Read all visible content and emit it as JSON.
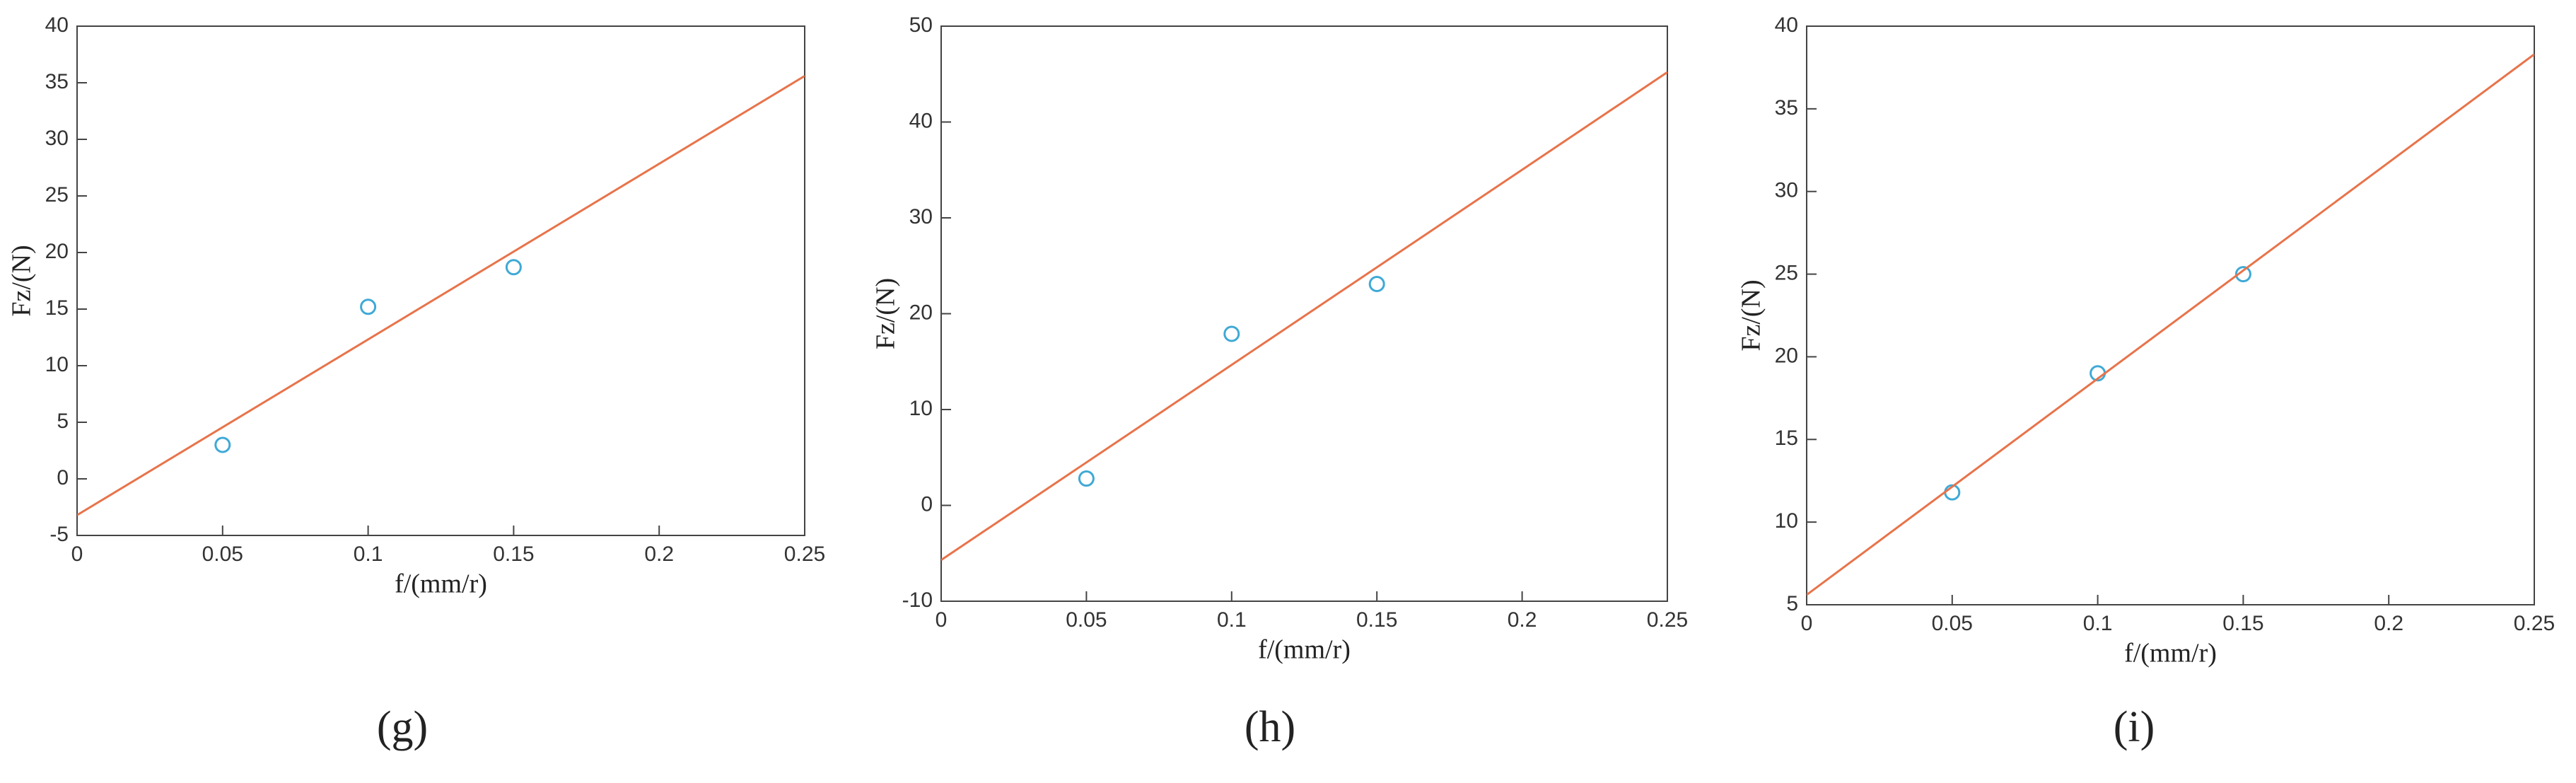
{
  "chart_data": [
    {
      "type": "scatter",
      "caption": "(g)",
      "xlabel": "f/(mm/r)",
      "ylabel": "Fz/(N)",
      "xlim": [
        0,
        0.25
      ],
      "xticks": [
        0,
        0.05,
        0.1,
        0.15,
        0.2,
        0.25
      ],
      "ylim": [
        -5,
        40
      ],
      "yticks": [
        -5,
        0,
        5,
        10,
        15,
        20,
        25,
        30,
        35,
        40
      ],
      "series": [
        {
          "mode": "markers",
          "color": "#3fa9d6",
          "x": [
            0.05,
            0.1,
            0.15
          ],
          "values": [
            3,
            15.2,
            18.7
          ]
        },
        {
          "mode": "line",
          "color": "#e8734a",
          "x": [
            0,
            0.25
          ],
          "values": [
            -3.2,
            35.6
          ]
        }
      ]
    },
    {
      "type": "scatter",
      "caption": "(h)",
      "xlabel": "f/(mm/r)",
      "ylabel": "Fz/(N)",
      "xlim": [
        0,
        0.25
      ],
      "xticks": [
        0,
        0.05,
        0.1,
        0.15,
        0.2,
        0.25
      ],
      "ylim": [
        -10,
        50
      ],
      "yticks": [
        -10,
        0,
        10,
        20,
        30,
        40,
        50
      ],
      "series": [
        {
          "mode": "markers",
          "color": "#3fa9d6",
          "x": [
            0.05,
            0.1,
            0.15
          ],
          "values": [
            2.8,
            17.9,
            23.1
          ]
        },
        {
          "mode": "line",
          "color": "#e8734a",
          "x": [
            0,
            0.25
          ],
          "values": [
            -5.7,
            45.2
          ]
        }
      ]
    },
    {
      "type": "scatter",
      "caption": "(i)",
      "xlabel": "f/(mm/r)",
      "ylabel": "Fz/(N)",
      "xlim": [
        0,
        0.25
      ],
      "xticks": [
        0,
        0.05,
        0.1,
        0.15,
        0.2,
        0.25
      ],
      "ylim": [
        5,
        40
      ],
      "yticks": [
        5,
        10,
        15,
        20,
        25,
        30,
        35,
        40
      ],
      "series": [
        {
          "mode": "markers",
          "color": "#3fa9d6",
          "x": [
            0.05,
            0.1,
            0.15
          ],
          "values": [
            11.8,
            19,
            25
          ]
        },
        {
          "mode": "line",
          "color": "#e8734a",
          "x": [
            0,
            0.25
          ],
          "values": [
            5.6,
            38.3
          ]
        }
      ]
    }
  ]
}
